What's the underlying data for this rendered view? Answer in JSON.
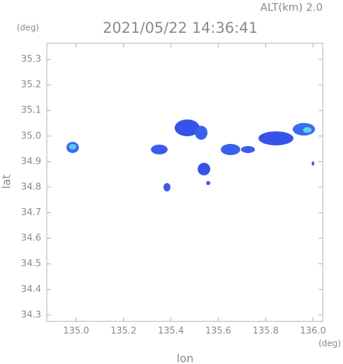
{
  "chart_data": {
    "type": "map",
    "title": "2021/05/22 14:36:41",
    "subtitle": "ALT(km) 2.0",
    "x_label": "lon",
    "y_label": "lat",
    "x_unit": "(deg)",
    "y_unit": "(deg)",
    "xlim": [
      134.876,
      136.041
    ],
    "ylim": [
      34.275,
      35.363
    ],
    "xticks": [
      {
        "value": 135.0,
        "label": "135.0"
      },
      135.2,
      135.4,
      135.6,
      135.8,
      {
        "value": 136.0,
        "label": "136.0"
      }
    ],
    "yticks": [
      34.3,
      34.4,
      34.5,
      34.6,
      34.7,
      34.8,
      34.9,
      {
        "value": 35.0,
        "label": "35.0"
      },
      35.1,
      35.2,
      35.3
    ],
    "frame_color": "#b0b0b0"
  }
}
